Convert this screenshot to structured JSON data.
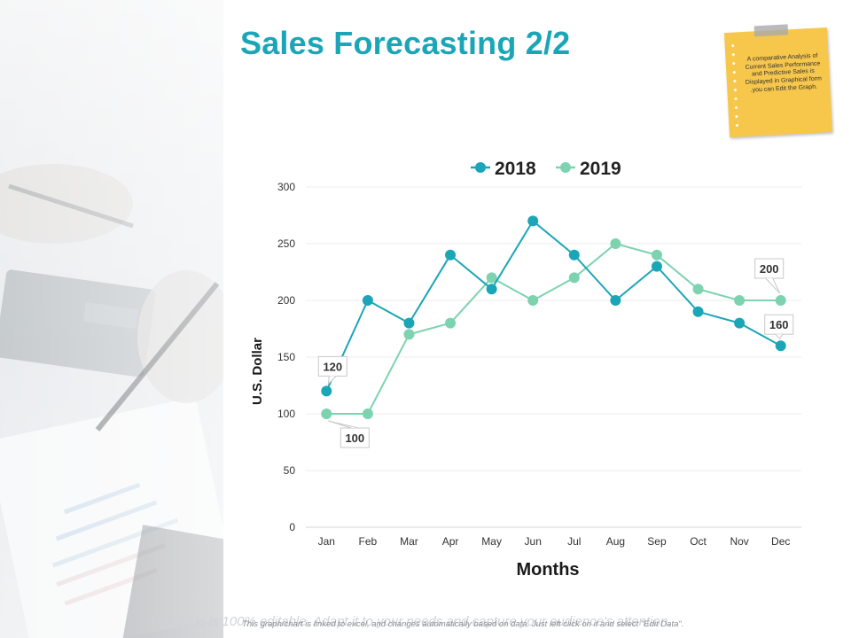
{
  "slide": {
    "title": "Sales Forecasting 2/2",
    "note_text": "A comparative Analysis of Current Sales Performance and Predictive Sales is Displayed in Graphical form .you can Edit the Graph.",
    "footer_text": "This slide is 100% editable. Adapt it to your needs and capture your audience's attention.",
    "footer_small": "This graph/chart is linked to excel, and changes automatically based on data. Just left click on it and select \"Edit Data\"."
  },
  "colors": {
    "title": "#1ba6b8",
    "series_2018": "#1ba6b8",
    "series_2019": "#7dd3b0",
    "note": "#f7c74b"
  },
  "chart_data": {
    "type": "line",
    "xlabel": "Months",
    "ylabel": "U.S. Dollar",
    "ylim": [
      0,
      300
    ],
    "yticks": [
      0,
      50,
      100,
      150,
      200,
      250,
      300
    ],
    "grid": true,
    "legend_position": "top",
    "categories": [
      "Jan",
      "Feb",
      "Mar",
      "Apr",
      "May",
      "Jun",
      "Jul",
      "Aug",
      "Sep",
      "Oct",
      "Nov",
      "Dec"
    ],
    "series": [
      {
        "name": "2018",
        "color": "#1ba6b8",
        "values": [
          120,
          200,
          180,
          240,
          210,
          270,
          240,
          200,
          230,
          190,
          180,
          160
        ]
      },
      {
        "name": "2019",
        "color": "#7dd3b0",
        "values": [
          100,
          100,
          170,
          180,
          220,
          200,
          220,
          250,
          240,
          210,
          200,
          200
        ]
      }
    ],
    "annotations": [
      {
        "series": 0,
        "index": 0,
        "text": "120"
      },
      {
        "series": 1,
        "index": 0,
        "text": "100"
      },
      {
        "series": 1,
        "index": 11,
        "text": "200"
      },
      {
        "series": 0,
        "index": 11,
        "text": "160"
      }
    ]
  }
}
